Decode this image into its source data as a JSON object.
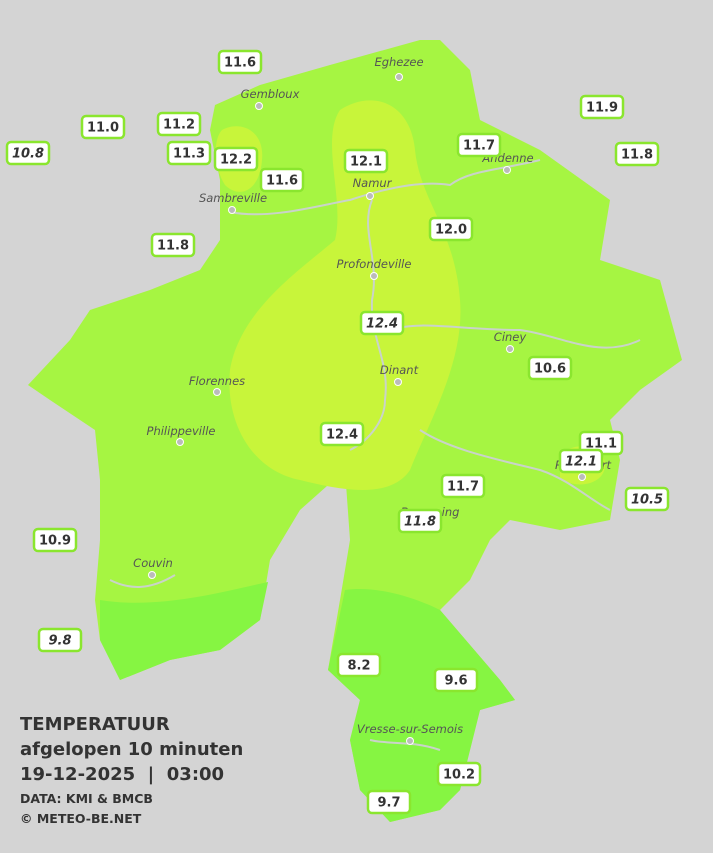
{
  "title": {
    "heading": "TEMPERATUUR",
    "subheading": "afgelopen 10 minuten",
    "datetime": "19-12-2025  |  03:00",
    "source": "DATA: KMI & BMCB",
    "copyright": "© METEO-BE.NET"
  },
  "cities": [
    "Eghezee",
    "Gembloux",
    "Namur",
    "Andenne",
    "Sambreville",
    "Profondeville",
    "Ciney",
    "Florennes",
    "Dinant",
    "Philippeville",
    "Rochefort",
    "Beauraing",
    "Couvin",
    "Vresse-sur-Semois"
  ],
  "stations": [
    "11.6",
    "11.0",
    "11.2",
    "11.3",
    "12.2",
    "11.6",
    "10.8",
    "11.8",
    "12.1",
    "11.7",
    "11.9",
    "11.8",
    "12.0",
    "12.4",
    "10.6",
    "12.4",
    "11.1",
    "12.1",
    "10.5",
    "11.7",
    "11.8",
    "10.9",
    "9.8",
    "8.2",
    "9.6",
    "10.2",
    "9.7"
  ]
}
